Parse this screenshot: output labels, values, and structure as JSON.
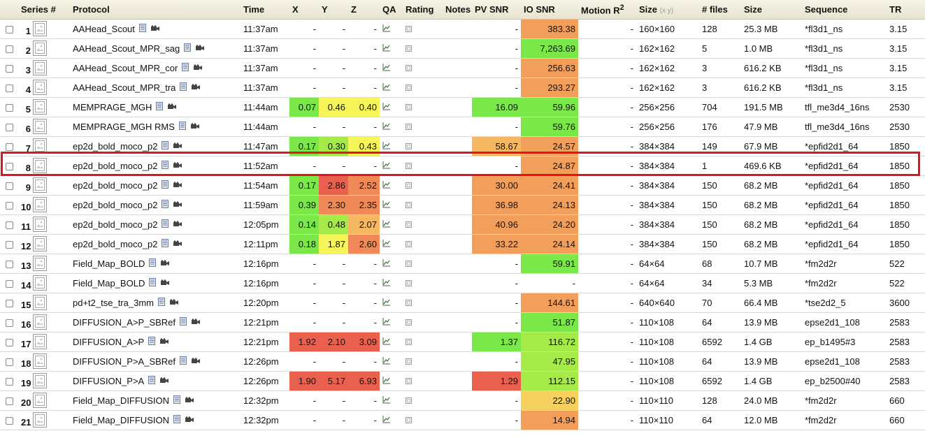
{
  "columns": [
    "Series #",
    "Protocol",
    "Time",
    "X",
    "Y",
    "Z",
    "QA",
    "Rating",
    "Notes",
    "PV SNR",
    "IO SNR",
    "Motion R",
    "Size",
    "# files",
    "Size",
    "Sequence",
    "TR"
  ],
  "motion_sup": "2",
  "size_unit": "(x y)",
  "colors": {
    "g": "#7be84a",
    "lg": "#a6ea4a",
    "y": "#f6f65a",
    "yo": "#f5d05c",
    "lo": "#f5b860",
    "o": "#f29f5c",
    "do": "#ef8a58",
    "r": "#e9604f",
    "header": "#ece8d6",
    "highlight": "#e0141a"
  },
  "rows": [
    {
      "n": "1",
      "protocol": "AAHead_Scout",
      "time": "11:37am",
      "x": "-",
      "y": "-",
      "z": "-",
      "pv": "-",
      "io": "383.38",
      "io_c": "o",
      "motion": "-",
      "size": "160×160",
      "files": "128",
      "fsize": "25.3 MB",
      "seq": "*fl3d1_ns",
      "tr": "3.15"
    },
    {
      "n": "2",
      "protocol": "AAHead_Scout_MPR_sag",
      "time": "11:37am",
      "x": "-",
      "y": "-",
      "z": "-",
      "pv": "-",
      "io": "7,263.69",
      "io_c": "g",
      "motion": "-",
      "size": "162×162",
      "files": "5",
      "fsize": "1.0 MB",
      "seq": "*fl3d1_ns",
      "tr": "3.15"
    },
    {
      "n": "3",
      "protocol": "AAHead_Scout_MPR_cor",
      "time": "11:37am",
      "x": "-",
      "y": "-",
      "z": "-",
      "pv": "-",
      "io": "256.63",
      "io_c": "o",
      "motion": "-",
      "size": "162×162",
      "files": "3",
      "fsize": "616.2 KB",
      "seq": "*fl3d1_ns",
      "tr": "3.15"
    },
    {
      "n": "4",
      "protocol": "AAHead_Scout_MPR_tra",
      "time": "11:37am",
      "x": "-",
      "y": "-",
      "z": "-",
      "pv": "-",
      "io": "293.27",
      "io_c": "o",
      "motion": "-",
      "size": "162×162",
      "files": "3",
      "fsize": "616.2 KB",
      "seq": "*fl3d1_ns",
      "tr": "3.15"
    },
    {
      "n": "5",
      "protocol": "MEMPRAGE_MGH",
      "time": "11:44am",
      "x": "0.07",
      "x_c": "g",
      "y": "0.46",
      "y_c": "y",
      "z": "0.40",
      "z_c": "y",
      "pv": "16.09",
      "pv_c": "g",
      "io": "59.96",
      "io_c": "g",
      "motion": "-",
      "size": "256×256",
      "files": "704",
      "fsize": "191.5 MB",
      "seq": "tfl_me3d4_16ns",
      "tr": "2530"
    },
    {
      "n": "6",
      "protocol": "MEMPRAGE_MGH RMS",
      "time": "11:44am",
      "x": "-",
      "y": "-",
      "z": "-",
      "pv": "-",
      "io": "59.76",
      "io_c": "g",
      "motion": "-",
      "size": "256×256",
      "files": "176",
      "fsize": "47.9 MB",
      "seq": "tfl_me3d4_16ns",
      "tr": "2530"
    },
    {
      "n": "7",
      "protocol": "ep2d_bold_moco_p2",
      "time": "11:47am",
      "x": "0.17",
      "x_c": "g",
      "y": "0.30",
      "y_c": "lg",
      "z": "0.43",
      "z_c": "y",
      "pv": "58.67",
      "pv_c": "lo",
      "io": "24.57",
      "io_c": "o",
      "motion": "-",
      "size": "384×384",
      "files": "149",
      "fsize": "67.9 MB",
      "seq": "*epfid2d1_64",
      "tr": "1850"
    },
    {
      "n": "8",
      "protocol": "ep2d_bold_moco_p2",
      "time": "11:52am",
      "x": "-",
      "y": "-",
      "z": "-",
      "pv": "-",
      "io": "24.87",
      "io_c": "o",
      "motion": "-",
      "size": "384×384",
      "files": "1",
      "fsize": "469.6 KB",
      "seq": "*epfid2d1_64",
      "tr": "1850"
    },
    {
      "n": "9",
      "protocol": "ep2d_bold_moco_p2",
      "time": "11:54am",
      "x": "0.17",
      "x_c": "g",
      "y": "2.86",
      "y_c": "r",
      "z": "2.52",
      "z_c": "do",
      "pv": "30.00",
      "pv_c": "o",
      "io": "24.41",
      "io_c": "o",
      "motion": "-",
      "size": "384×384",
      "files": "150",
      "fsize": "68.2 MB",
      "seq": "*epfid2d1_64",
      "tr": "1850"
    },
    {
      "n": "10",
      "protocol": "ep2d_bold_moco_p2",
      "time": "11:59am",
      "x": "0.39",
      "x_c": "g",
      "y": "2.30",
      "y_c": "do",
      "z": "2.35",
      "z_c": "do",
      "pv": "36.98",
      "pv_c": "o",
      "io": "24.13",
      "io_c": "o",
      "motion": "-",
      "size": "384×384",
      "files": "150",
      "fsize": "68.2 MB",
      "seq": "*epfid2d1_64",
      "tr": "1850"
    },
    {
      "n": "11",
      "protocol": "ep2d_bold_moco_p2",
      "time": "12:05pm",
      "x": "0.14",
      "x_c": "g",
      "y": "0.48",
      "y_c": "lg",
      "z": "2.07",
      "z_c": "lo",
      "pv": "40.96",
      "pv_c": "o",
      "io": "24.20",
      "io_c": "o",
      "motion": "-",
      "size": "384×384",
      "files": "150",
      "fsize": "68.2 MB",
      "seq": "*epfid2d1_64",
      "tr": "1850"
    },
    {
      "n": "12",
      "protocol": "ep2d_bold_moco_p2",
      "time": "12:11pm",
      "x": "0.18",
      "x_c": "g",
      "y": "1.87",
      "y_c": "y",
      "z": "2.60",
      "z_c": "do",
      "pv": "33.22",
      "pv_c": "o",
      "io": "24.14",
      "io_c": "o",
      "motion": "-",
      "size": "384×384",
      "files": "150",
      "fsize": "68.2 MB",
      "seq": "*epfid2d1_64",
      "tr": "1850"
    },
    {
      "n": "13",
      "protocol": "Field_Map_BOLD",
      "time": "12:16pm",
      "x": "-",
      "y": "-",
      "z": "-",
      "pv": "-",
      "io": "59.91",
      "io_c": "g",
      "motion": "-",
      "size": "64×64",
      "files": "68",
      "fsize": "10.7 MB",
      "seq": "*fm2d2r",
      "tr": "522"
    },
    {
      "n": "14",
      "protocol": "Field_Map_BOLD",
      "time": "12:16pm",
      "x": "-",
      "y": "-",
      "z": "-",
      "pv": "-",
      "io": "-",
      "motion": "-",
      "size": "64×64",
      "files": "34",
      "fsize": "5.3 MB",
      "seq": "*fm2d2r",
      "tr": "522"
    },
    {
      "n": "15",
      "protocol": "pd+t2_tse_tra_3mm",
      "time": "12:20pm",
      "x": "-",
      "y": "-",
      "z": "-",
      "pv": "-",
      "io": "144.61",
      "io_c": "o",
      "motion": "-",
      "size": "640×640",
      "files": "70",
      "fsize": "66.4 MB",
      "seq": "*tse2d2_5",
      "tr": "3600"
    },
    {
      "n": "16",
      "protocol": "DIFFUSION_A>P_SBRef",
      "time": "12:21pm",
      "x": "-",
      "y": "-",
      "z": "-",
      "pv": "-",
      "io": "51.87",
      "io_c": "g",
      "motion": "-",
      "size": "110×108",
      "files": "64",
      "fsize": "13.9 MB",
      "seq": "epse2d1_108",
      "tr": "2583"
    },
    {
      "n": "17",
      "protocol": "DIFFUSION_A>P",
      "time": "12:21pm",
      "x": "1.92",
      "x_c": "r",
      "y": "2.10",
      "y_c": "r",
      "z": "3.09",
      "z_c": "r",
      "pv": "1.37",
      "pv_c": "g",
      "io": "116.72",
      "io_c": "lg",
      "motion": "-",
      "size": "110×108",
      "files": "6592",
      "fsize": "1.4 GB",
      "seq": "ep_b1495#3",
      "tr": "2583"
    },
    {
      "n": "18",
      "protocol": "DIFFUSION_P>A_SBRef",
      "time": "12:26pm",
      "x": "-",
      "y": "-",
      "z": "-",
      "pv": "-",
      "io": "47.95",
      "io_c": "lg",
      "motion": "-",
      "size": "110×108",
      "files": "64",
      "fsize": "13.9 MB",
      "seq": "epse2d1_108",
      "tr": "2583"
    },
    {
      "n": "19",
      "protocol": "DIFFUSION_P>A",
      "time": "12:26pm",
      "x": "1.90",
      "x_c": "r",
      "y": "5.17",
      "y_c": "r",
      "z": "6.93",
      "z_c": "r",
      "pv": "1.29",
      "pv_c": "r",
      "io": "112.15",
      "io_c": "lg",
      "motion": "-",
      "size": "110×108",
      "files": "6592",
      "fsize": "1.4 GB",
      "seq": "ep_b2500#40",
      "tr": "2583"
    },
    {
      "n": "20",
      "protocol": "Field_Map_DIFFUSION",
      "time": "12:32pm",
      "x": "-",
      "y": "-",
      "z": "-",
      "pv": "-",
      "io": "22.90",
      "io_c": "yo",
      "motion": "-",
      "size": "110×110",
      "files": "128",
      "fsize": "24.0 MB",
      "seq": "*fm2d2r",
      "tr": "660"
    },
    {
      "n": "21",
      "protocol": "Field_Map_DIFFUSION",
      "time": "12:32pm",
      "x": "-",
      "y": "-",
      "z": "-",
      "pv": "-",
      "io": "14.94",
      "io_c": "o",
      "motion": "-",
      "size": "110×110",
      "files": "64",
      "fsize": "12.0 MB",
      "seq": "*fm2d2r",
      "tr": "660"
    }
  ],
  "highlighted_row": "8"
}
